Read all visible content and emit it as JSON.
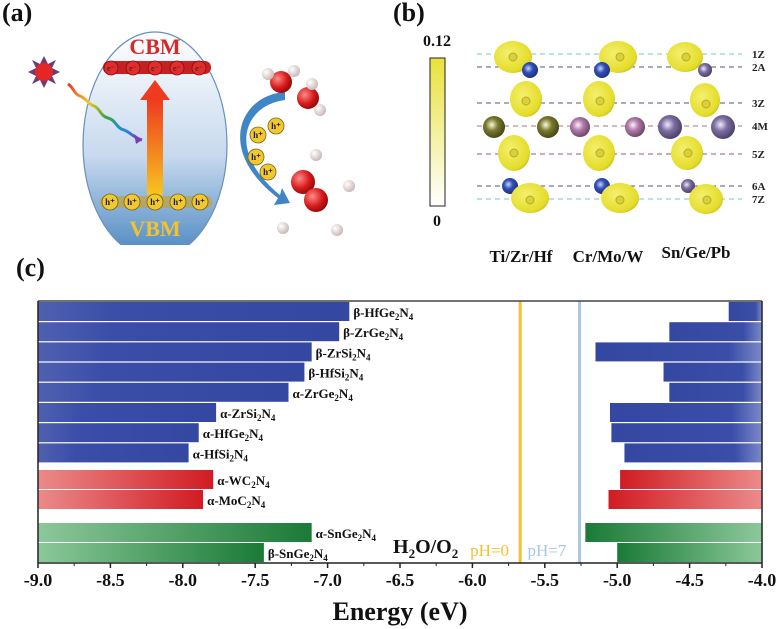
{
  "panels": {
    "a": {
      "label": "(a)",
      "cbm_label": "CBM",
      "vbm_label": "VBM",
      "electron_symbol": "e⁻",
      "hole_symbol": "h⁺",
      "electron_count": 5,
      "hole_count_band": 5,
      "hole_count_migrating": 4,
      "icons": [
        "sun-icon",
        "light-wave-icon",
        "excitation-arrow-icon",
        "water-molecule-icon",
        "oxygen-molecule-icon"
      ]
    },
    "b": {
      "label": "(b)",
      "colorbar_max": "0.12",
      "colorbar_min": "0",
      "layer_labels": [
        "1Z",
        "2A",
        "3Z",
        "4M",
        "5Z",
        "6A",
        "7Z"
      ],
      "column_labels": [
        "Ti/Zr/Hf",
        "Cr/Mo/W",
        "Sn/Ge/Pb"
      ],
      "colors": {
        "charge_density": "#e8e23a",
        "A_atom_col1": "#2b3f9e",
        "A_atom_col2": "#2b3f9e",
        "A_atom_col3": "#6a6090",
        "M_atom_col1": "#7a7a30",
        "M_atom_col2": "#b07aa8",
        "M_atom_col3": "#7c6ea0"
      }
    },
    "c": {
      "label": "(c)"
    }
  },
  "chart_data": {
    "type": "bar",
    "subtype": "band-edge floating bars",
    "title": "",
    "xlabel": "Energy (eV)",
    "ylabel": "",
    "xlim": [
      -9.0,
      -4.0
    ],
    "xticks": [
      -9.0,
      -8.5,
      -8.0,
      -7.5,
      -7.0,
      -6.5,
      -6.0,
      -5.5,
      -5.0,
      -4.5,
      -4.0
    ],
    "xtick_labels": [
      "-9.0",
      "-8.5",
      "-8.0",
      "-7.5",
      "-7.0",
      "-6.5",
      "-6.0",
      "-5.5",
      "-5.0",
      "-4.5",
      "-4.0"
    ],
    "grid": false,
    "series": [
      {
        "name": "β-HfGe2N4",
        "label_main": "β-HfGe",
        "sub1": "2",
        "mid": "N",
        "sub2": "4",
        "group": "Ti/Zr/Hf",
        "color": "#3a4ea8",
        "vbm": -6.85,
        "cbm": -4.23
      },
      {
        "name": "β-ZrGe2N4",
        "label_main": "β-ZrGe",
        "sub1": "2",
        "mid": "N",
        "sub2": "4",
        "group": "Ti/Zr/Hf",
        "color": "#3a4ea8",
        "vbm": -6.92,
        "cbm": -4.64
      },
      {
        "name": "β-ZrSi2N4",
        "label_main": "β-ZrSi",
        "sub1": "2",
        "mid": "N",
        "sub2": "4",
        "group": "Ti/Zr/Hf",
        "color": "#3a4ea8",
        "vbm": -7.11,
        "cbm": -5.15
      },
      {
        "name": "β-HfSi2N4",
        "label_main": "β-HfSi",
        "sub1": "2",
        "mid": "N",
        "sub2": "4",
        "group": "Ti/Zr/Hf",
        "color": "#3a4ea8",
        "vbm": -7.16,
        "cbm": -4.68
      },
      {
        "name": "α-ZrGe2N4",
        "label_main": "α-ZrGe",
        "sub1": "2",
        "mid": "N",
        "sub2": "4",
        "group": "Ti/Zr/Hf",
        "color": "#3a4ea8",
        "vbm": -7.27,
        "cbm": -4.64
      },
      {
        "name": "α-ZrSi2N4",
        "label_main": "α-ZrSi",
        "sub1": "2",
        "mid": "N",
        "sub2": "4",
        "group": "Ti/Zr/Hf",
        "color": "#3a4ea8",
        "vbm": -7.77,
        "cbm": -5.05
      },
      {
        "name": "α-HfGe2N4",
        "label_main": "α-HfGe",
        "sub1": "2",
        "mid": "N",
        "sub2": "4",
        "group": "Ti/Zr/Hf",
        "color": "#3a4ea8",
        "vbm": -7.89,
        "cbm": -5.04
      },
      {
        "name": "α-HfSi2N4",
        "label_main": "α-HfSi",
        "sub1": "2",
        "mid": "N",
        "sub2": "4",
        "group": "Ti/Zr/Hf",
        "color": "#3a4ea8",
        "vbm": -7.96,
        "cbm": -4.95
      },
      {
        "name": "α-WC2N4",
        "label_main": "α-WC",
        "sub1": "2",
        "mid": "N",
        "sub2": "4",
        "group": "Cr/Mo/W",
        "color": "#d42a2a",
        "vbm": -7.79,
        "cbm": -4.98
      },
      {
        "name": "α-MoC2N4",
        "label_main": "α-MoC",
        "sub1": "2",
        "mid": "N",
        "sub2": "4",
        "group": "Cr/Mo/W",
        "color": "#d42a2a",
        "vbm": -7.86,
        "cbm": -5.06
      },
      {
        "name": "α-SnGe2N4",
        "label_main": "α-SnGe",
        "sub1": "2",
        "mid": "N",
        "sub2": "4",
        "group": "Sn/Ge/Pb",
        "color": "#1f7a3a",
        "vbm": -7.11,
        "cbm": -5.22
      },
      {
        "name": "β-SnGe2N4",
        "label_main": "β-SnGe",
        "sub1": "2",
        "mid": "N",
        "sub2": "4",
        "group": "Sn/Ge/Pb",
        "color": "#1f7a3a",
        "vbm": -7.44,
        "cbm": -5.0
      }
    ],
    "reference_lines": [
      {
        "name": "pH=0",
        "label": "pH=0",
        "value": -5.67,
        "color": "#f2c230"
      },
      {
        "name": "pH=7",
        "label": "pH=7",
        "value": -5.26,
        "color": "#a8c8e0"
      }
    ],
    "annotation": {
      "text_main": "H",
      "sub1": "2",
      "mid": "O/O",
      "sub2": "2"
    }
  }
}
